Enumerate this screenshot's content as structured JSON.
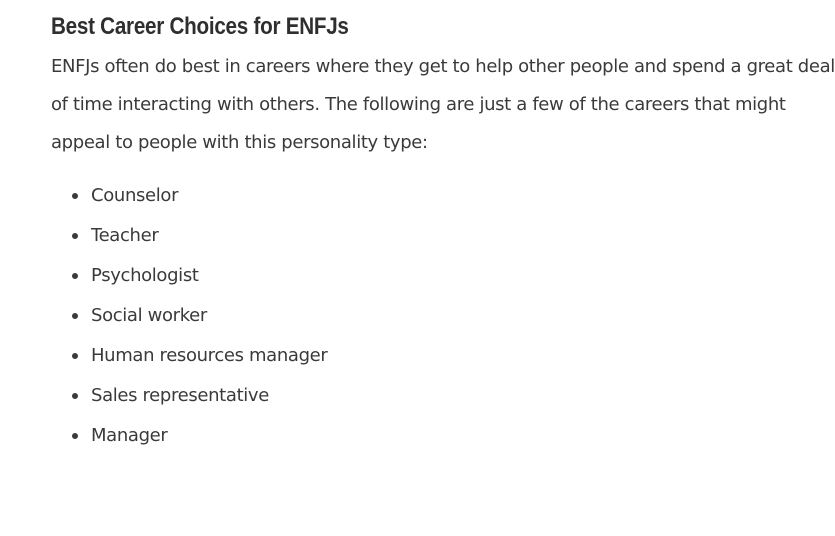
{
  "article": {
    "heading": "Best Career Choices for ENFJs",
    "intro": "ENFJs often do best in careers where they get to help other people and spend a great deal of time interacting with others. The following are just a few of the careers that might appeal to people with this personality type:",
    "careers": [
      "Counselor",
      "Teacher",
      "Psychologist",
      "Social worker",
      "Human resources manager",
      "Sales representative",
      "Manager"
    ]
  }
}
